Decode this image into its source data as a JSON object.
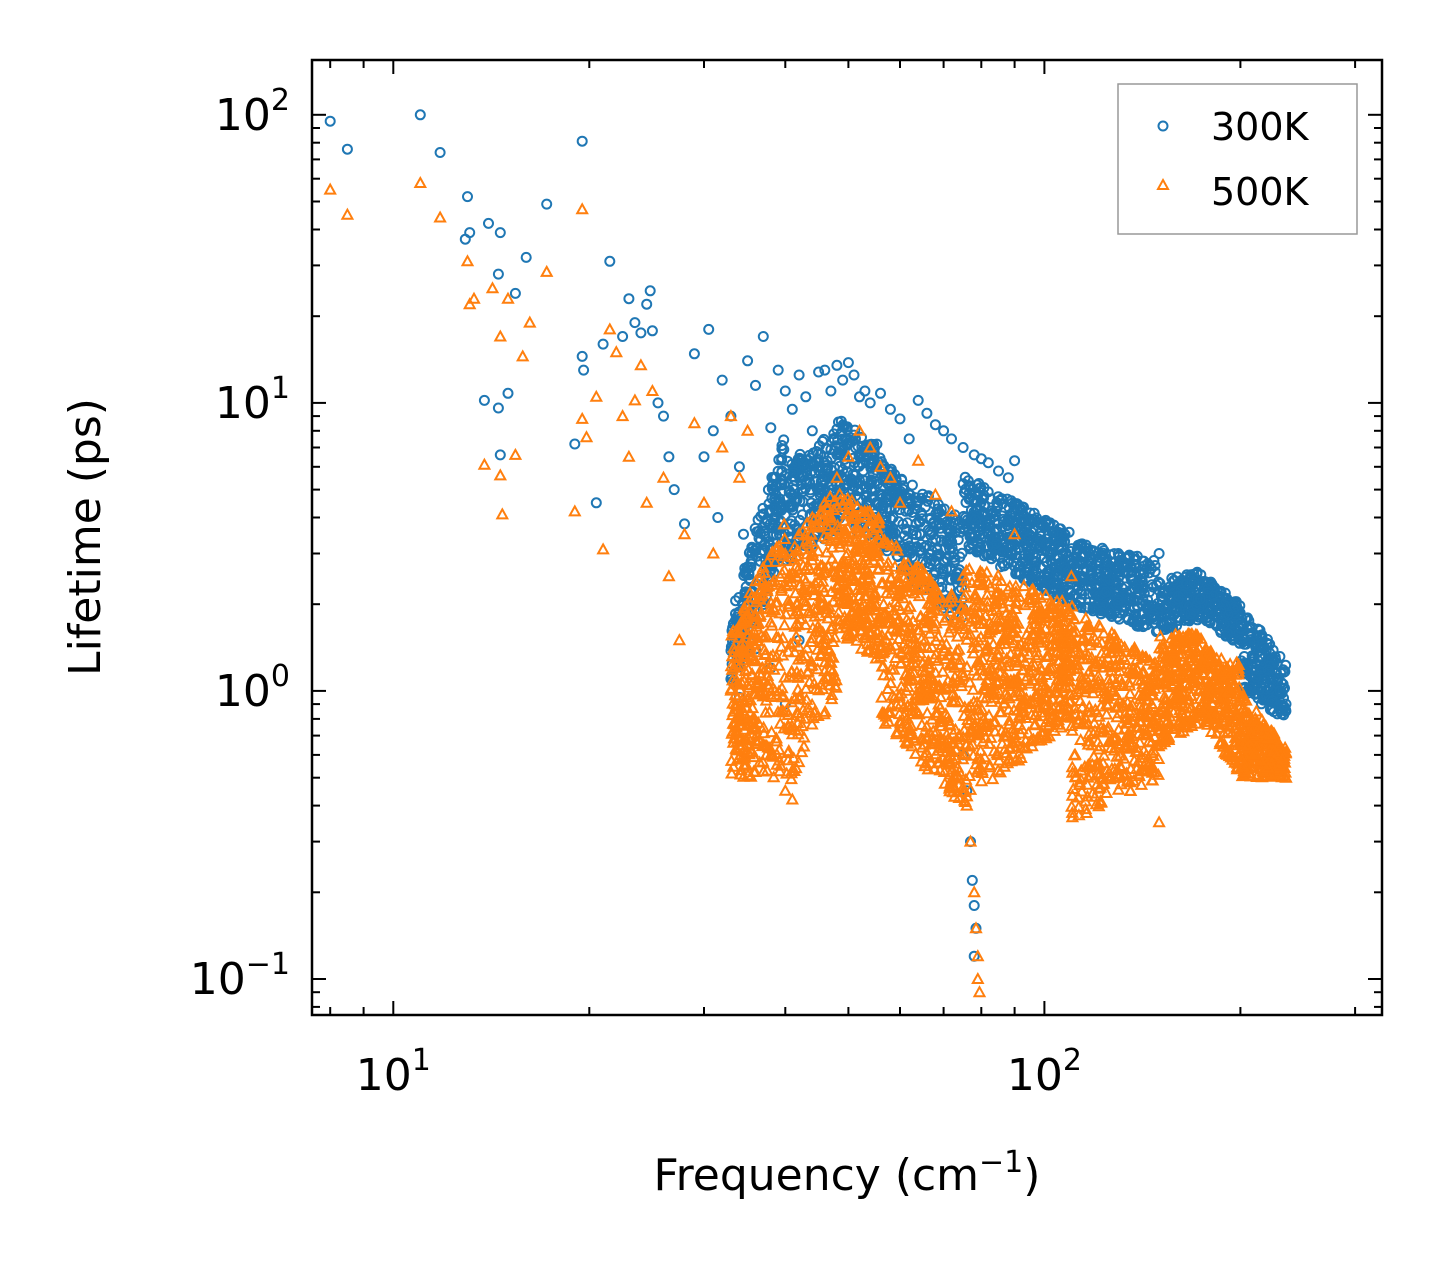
{
  "chart_data": {
    "type": "scatter",
    "title": "",
    "xlabel": "Frequency (cm",
    "xlabel_sup": "−1",
    "xlabel_suffix": ")",
    "ylabel": "Lifetime (ps)",
    "xscale": "log",
    "yscale": "log",
    "xlim": [
      7.5,
      330
    ],
    "ylim": [
      0.075,
      155
    ],
    "x_ticks": [
      {
        "value": 10,
        "base": "10",
        "exp": "1"
      },
      {
        "value": 100,
        "base": "10",
        "exp": "2"
      }
    ],
    "y_ticks": [
      {
        "value": 0.1,
        "base": "10",
        "exp": "−1"
      },
      {
        "value": 1,
        "base": "10",
        "exp": "0"
      },
      {
        "value": 10,
        "base": "10",
        "exp": "1"
      },
      {
        "value": 100,
        "base": "10",
        "exp": "2"
      }
    ],
    "legend_position": "top-right",
    "series": [
      {
        "name": "300K",
        "marker": "circle",
        "color": "#1f77b4",
        "points": [
          [
            8.0,
            95
          ],
          [
            8.5,
            76
          ],
          [
            11.0,
            100
          ],
          [
            11.8,
            74
          ],
          [
            13.0,
            52
          ],
          [
            13.1,
            39
          ],
          [
            14.0,
            42
          ],
          [
            14.6,
            39
          ],
          [
            14.5,
            28
          ],
          [
            15.4,
            24
          ],
          [
            16.0,
            32
          ],
          [
            17.2,
            49
          ],
          [
            19.5,
            81
          ],
          [
            12.9,
            37
          ],
          [
            13.8,
            10.2
          ],
          [
            14.5,
            9.6
          ],
          [
            15.0,
            10.8
          ],
          [
            14.6,
            6.6
          ],
          [
            19.0,
            7.2
          ],
          [
            19.5,
            14.5
          ],
          [
            19.6,
            13.0
          ],
          [
            20.5,
            4.5
          ],
          [
            21.0,
            16.0
          ],
          [
            21.5,
            31
          ],
          [
            22.5,
            17.0
          ],
          [
            23.0,
            23.0
          ],
          [
            23.5,
            19.0
          ],
          [
            24.0,
            17.5
          ],
          [
            24.5,
            22.0
          ],
          [
            24.8,
            24.5
          ],
          [
            25.0,
            17.8
          ],
          [
            25.5,
            10.0
          ],
          [
            26.0,
            9.0
          ],
          [
            26.5,
            6.5
          ],
          [
            27.0,
            5.0
          ],
          [
            28.0,
            3.8
          ],
          [
            29.0,
            14.8
          ],
          [
            30.0,
            6.5
          ],
          [
            30.5,
            18.0
          ],
          [
            31.0,
            8.0
          ],
          [
            31.5,
            4.0
          ],
          [
            32.0,
            12.0
          ],
          [
            33.0,
            9.0
          ],
          [
            34.0,
            6.0
          ],
          [
            34.5,
            3.5
          ],
          [
            35.0,
            14.0
          ],
          [
            36.0,
            11.5
          ],
          [
            37.0,
            17.0
          ],
          [
            38.0,
            8.2
          ],
          [
            39.0,
            13.0
          ],
          [
            40.0,
            11.0
          ],
          [
            41.0,
            9.5
          ],
          [
            42.0,
            12.5
          ],
          [
            43.0,
            10.5
          ],
          [
            44.0,
            8.0
          ],
          [
            45.0,
            12.8
          ],
          [
            46.0,
            13.0
          ],
          [
            47.0,
            11.0
          ],
          [
            48.0,
            13.5
          ],
          [
            49.0,
            12.0
          ],
          [
            50.0,
            13.8
          ],
          [
            51.0,
            12.5
          ],
          [
            52.0,
            10.5
          ],
          [
            53.0,
            11.0
          ],
          [
            54.0,
            10.0
          ],
          [
            56.0,
            10.8
          ],
          [
            58.0,
            9.5
          ],
          [
            60.0,
            8.8
          ],
          [
            62.0,
            7.5
          ],
          [
            64.0,
            10.2
          ],
          [
            66.0,
            9.2
          ],
          [
            68.0,
            8.4
          ],
          [
            70.0,
            8.0
          ],
          [
            72.0,
            7.5
          ],
          [
            75.0,
            7.0
          ],
          [
            78.0,
            6.6
          ],
          [
            80.0,
            6.4
          ],
          [
            82.0,
            6.2
          ],
          [
            85.0,
            5.8
          ],
          [
            88.0,
            5.5
          ],
          [
            90.0,
            6.3
          ],
          [
            33.0,
            1.1
          ],
          [
            34.0,
            0.95
          ],
          [
            36.0,
            1.4
          ],
          [
            38.0,
            1.2
          ],
          [
            40.0,
            0.9
          ],
          [
            42.0,
            1.5
          ],
          [
            75.0,
            0.6
          ],
          [
            76.0,
            0.45
          ],
          [
            77.0,
            0.3
          ],
          [
            77.5,
            0.22
          ],
          [
            78.0,
            0.18
          ],
          [
            78.5,
            0.15
          ],
          [
            78.0,
            0.12
          ],
          [
            150,
            3.0
          ],
          [
            200,
            1.5
          ],
          [
            230,
            1.0
          ],
          [
            235,
            0.9
          ]
        ]
      },
      {
        "name": "500K",
        "marker": "triangle",
        "color": "#ff7f0e",
        "points": [
          [
            8.0,
            55
          ],
          [
            8.5,
            45
          ],
          [
            11.0,
            58
          ],
          [
            11.8,
            44
          ],
          [
            13.0,
            31
          ],
          [
            13.1,
            22
          ],
          [
            13.3,
            23
          ],
          [
            14.2,
            25
          ],
          [
            14.6,
            17
          ],
          [
            15.0,
            23
          ],
          [
            15.8,
            14.5
          ],
          [
            16.2,
            19
          ],
          [
            17.2,
            28.5
          ],
          [
            19.5,
            47
          ],
          [
            13.8,
            6.1
          ],
          [
            14.6,
            5.6
          ],
          [
            14.7,
            4.1
          ],
          [
            15.4,
            6.6
          ],
          [
            19.0,
            4.2
          ],
          [
            19.5,
            8.8
          ],
          [
            19.8,
            7.6
          ],
          [
            20.5,
            10.5
          ],
          [
            21.0,
            3.1
          ],
          [
            21.5,
            18.0
          ],
          [
            22.0,
            15.0
          ],
          [
            22.5,
            9.0
          ],
          [
            23.0,
            6.5
          ],
          [
            23.5,
            10.2
          ],
          [
            24.0,
            13.5
          ],
          [
            24.5,
            4.5
          ],
          [
            25.0,
            11.0
          ],
          [
            26.0,
            5.5
          ],
          [
            26.5,
            2.5
          ],
          [
            27.5,
            1.5
          ],
          [
            28.0,
            3.5
          ],
          [
            29.0,
            8.5
          ],
          [
            30.0,
            4.5
          ],
          [
            31.0,
            3.0
          ],
          [
            32.0,
            7.0
          ],
          [
            33.0,
            9.0
          ],
          [
            34.0,
            5.5
          ],
          [
            35.0,
            8.0
          ],
          [
            36.0,
            0.75
          ],
          [
            37.0,
            0.65
          ],
          [
            38.0,
            0.6
          ],
          [
            40.0,
            0.45
          ],
          [
            41.0,
            0.42
          ],
          [
            42.0,
            3.5
          ],
          [
            44.0,
            4.0
          ],
          [
            46.0,
            4.5
          ],
          [
            48.0,
            5.5
          ],
          [
            50.0,
            6.5
          ],
          [
            52.0,
            8.0
          ],
          [
            54.0,
            7.0
          ],
          [
            56.0,
            6.0
          ],
          [
            58.0,
            5.5
          ],
          [
            60.0,
            4.5
          ],
          [
            64.0,
            6.3
          ],
          [
            68.0,
            4.8
          ],
          [
            72.0,
            4.2
          ],
          [
            75.0,
            0.6
          ],
          [
            76.0,
            0.4
          ],
          [
            77.0,
            0.3
          ],
          [
            78.0,
            0.2
          ],
          [
            78.5,
            0.15
          ],
          [
            79.0,
            0.12
          ],
          [
            79.0,
            0.1
          ],
          [
            79.5,
            0.09
          ],
          [
            90.0,
            3.5
          ],
          [
            110,
            2.5
          ],
          [
            130,
            0.5
          ],
          [
            150,
            0.35
          ],
          [
            170,
            1.5
          ],
          [
            190,
            0.9
          ],
          [
            210,
            0.6
          ],
          [
            230,
            0.55
          ],
          [
            235,
            0.5
          ]
        ]
      }
    ],
    "dense_bands": [
      {
        "series": "300K",
        "count": 2200,
        "segments": [
          {
            "x": [
              33,
              40
            ],
            "ylog": [
              [
                0.0,
                0.3
              ],
              [
                0.5,
                0.9
              ]
            ]
          },
          {
            "x": [
              40,
              48
            ],
            "ylog": [
              [
                0.45,
                0.8
              ],
              [
                0.55,
                0.9
              ]
            ]
          },
          {
            "x": [
              48,
              56
            ],
            "ylog": [
              [
                0.6,
                0.95
              ],
              [
                0.5,
                0.85
              ]
            ]
          },
          {
            "x": [
              56,
              75
            ],
            "ylog": [
              [
                0.5,
                0.8
              ],
              [
                0.2,
                0.6
              ]
            ]
          },
          {
            "x": [
              75,
              110
            ],
            "ylog": [
              [
                0.5,
                0.75
              ],
              [
                0.3,
                0.55
              ]
            ]
          },
          {
            "x": [
              110,
              150
            ],
            "ylog": [
              [
                0.3,
                0.52
              ],
              [
                0.2,
                0.45
              ]
            ]
          },
          {
            "x": [
              150,
              175
            ],
            "ylog": [
              [
                0.2,
                0.38
              ],
              [
                0.25,
                0.42
              ]
            ]
          },
          {
            "x": [
              175,
              200
            ],
            "ylog": [
              [
                0.25,
                0.4
              ],
              [
                0.15,
                0.3
              ]
            ]
          },
          {
            "x": [
              200,
              235
            ],
            "ylog": [
              [
                0.0,
                0.3
              ],
              [
                -0.1,
                0.1
              ]
            ]
          }
        ]
      },
      {
        "series": "500K",
        "count": 3000,
        "segments": [
          {
            "x": [
              33,
              40
            ],
            "ylog": [
              [
                -0.3,
                0.2
              ],
              [
                -0.3,
                0.6
              ]
            ]
          },
          {
            "x": [
              40,
              48
            ],
            "ylog": [
              [
                -0.35,
                0.5
              ],
              [
                0.0,
                0.7
              ]
            ]
          },
          {
            "x": [
              48,
              56
            ],
            "ylog": [
              [
                0.2,
                0.7
              ],
              [
                0.1,
                0.6
              ]
            ]
          },
          {
            "x": [
              56,
              75
            ],
            "ylog": [
              [
                -0.1,
                0.55
              ],
              [
                -0.4,
                0.3
              ]
            ]
          },
          {
            "x": [
              75,
              110
            ],
            "ylog": [
              [
                -0.4,
                0.45
              ],
              [
                -0.1,
                0.3
              ]
            ]
          },
          {
            "x": [
              110,
              150
            ],
            "ylog": [
              [
                -0.45,
                0.3
              ],
              [
                -0.3,
                0.1
              ]
            ]
          },
          {
            "x": [
              150,
              175
            ],
            "ylog": [
              [
                -0.2,
                0.2
              ],
              [
                -0.1,
                0.2
              ]
            ]
          },
          {
            "x": [
              175,
              200
            ],
            "ylog": [
              [
                -0.1,
                0.15
              ],
              [
                -0.3,
                0.1
              ]
            ]
          },
          {
            "x": [
              200,
              235
            ],
            "ylog": [
              [
                -0.3,
                0.0
              ],
              [
                -0.3,
                -0.2
              ]
            ]
          }
        ]
      }
    ]
  }
}
